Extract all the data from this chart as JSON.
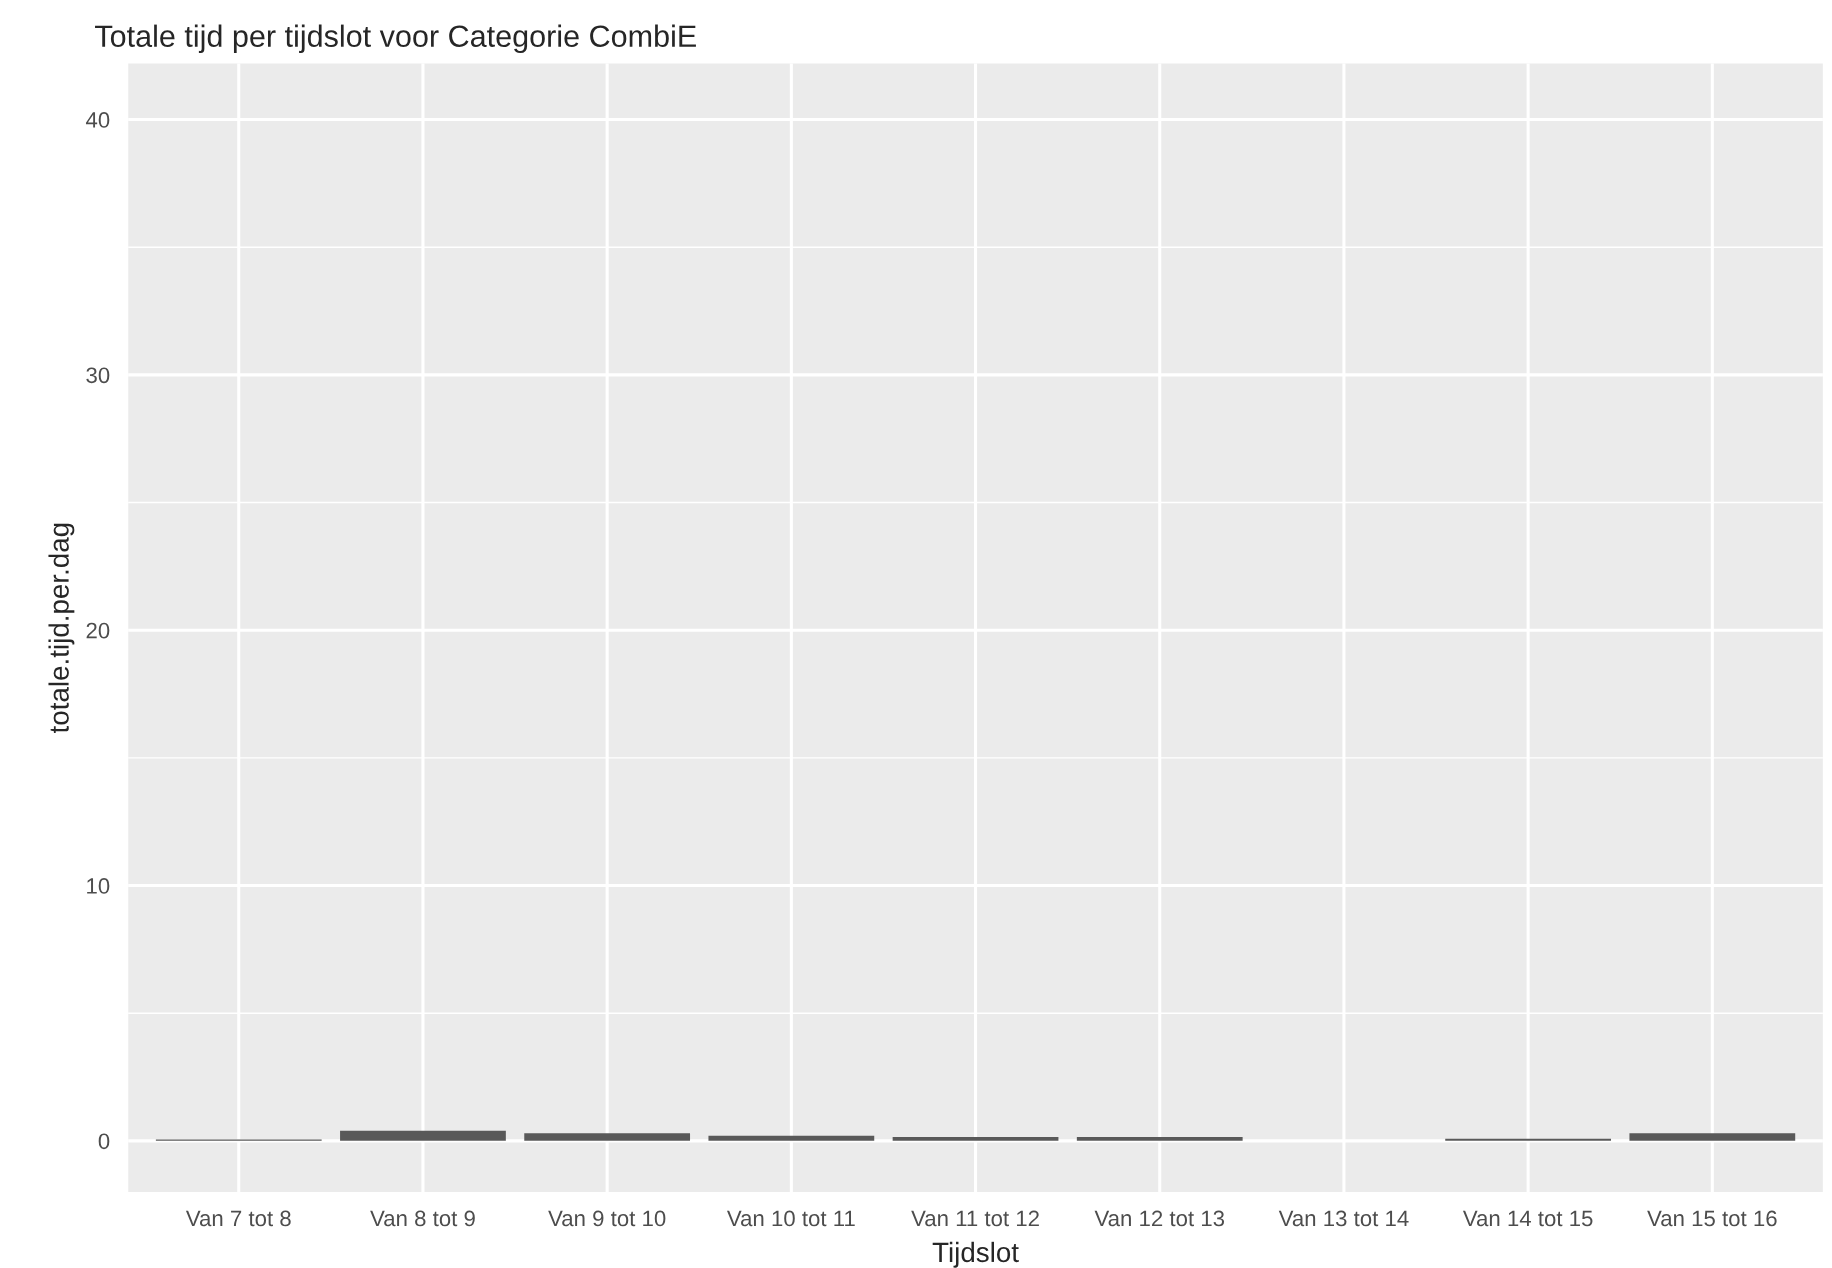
{
  "chart_data": {
    "type": "bar",
    "title": "Totale tijd per tijdslot voor Categorie CombiE",
    "xlabel": "Tijdslot",
    "ylabel": "totale.tijd.per.dag",
    "categories": [
      "Van 7 tot 8",
      "Van 8 tot 9",
      "Van 9 tot 10",
      "Van 10 tot 11",
      "Van 11 tot 12",
      "Van 12 tot 13",
      "Van 13 tot 14",
      "Van 14 tot 15",
      "Van 15 tot 16"
    ],
    "values": [
      0.05,
      0.4,
      0.3,
      0.2,
      0.15,
      0.15,
      null,
      0.08,
      0.3
    ],
    "color": "#595959",
    "ylim": [
      -2,
      42.2
    ],
    "yticks": [
      0,
      10,
      20,
      30,
      40
    ],
    "grid": true,
    "legend": false
  }
}
